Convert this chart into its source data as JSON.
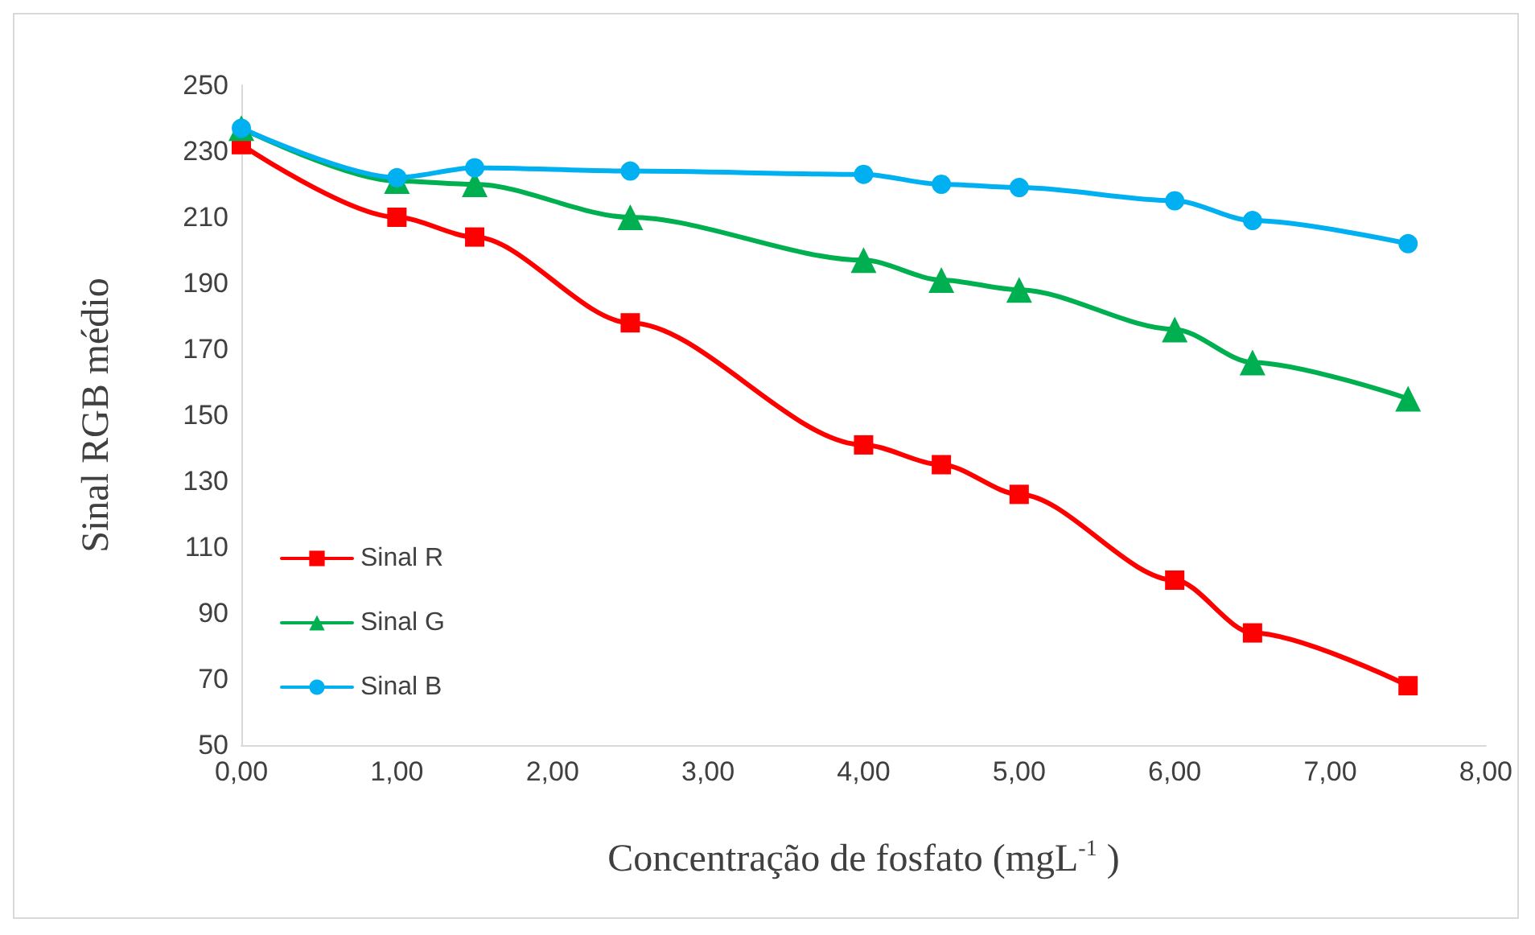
{
  "chart_data": {
    "type": "line",
    "xlabel": "Concentração de fosfato (mgL$^{-1}$ )",
    "ylabel": "Sinal RGB médio",
    "x": [
      0,
      1,
      1.5,
      2.5,
      4,
      4.5,
      5,
      6,
      6.5,
      7.5
    ],
    "series": [
      {
        "name": "Sinal R",
        "color": "#ff0000",
        "marker": "square",
        "values": [
          232,
          210,
          204,
          178,
          141,
          135,
          126,
          100,
          84,
          68
        ]
      },
      {
        "name": "Sinal G",
        "color": "#00b050",
        "marker": "triangle",
        "values": [
          237,
          221,
          220,
          210,
          197,
          191,
          188,
          176,
          166,
          155
        ]
      },
      {
        "name": "Sinal B",
        "color": "#00b0f0",
        "marker": "circle",
        "values": [
          237,
          222,
          225,
          224,
          223,
          220,
          219,
          215,
          209,
          202
        ]
      }
    ],
    "xlim": [
      0,
      8
    ],
    "xticks": [
      {
        "value": 0,
        "label": "0,00"
      },
      {
        "value": 1,
        "label": "1,00"
      },
      {
        "value": 2,
        "label": "2,00"
      },
      {
        "value": 3,
        "label": "3,00"
      },
      {
        "value": 4,
        "label": "4,00"
      },
      {
        "value": 5,
        "label": "5,00"
      },
      {
        "value": 6,
        "label": "6,00"
      },
      {
        "value": 7,
        "label": "7,00"
      },
      {
        "value": 8,
        "label": "8,00"
      }
    ],
    "ylim": [
      50,
      250
    ],
    "yticks": [
      50,
      70,
      90,
      110,
      130,
      150,
      170,
      190,
      210,
      230,
      250
    ],
    "grid": false,
    "legend": "left",
    "line_style": "solid"
  }
}
